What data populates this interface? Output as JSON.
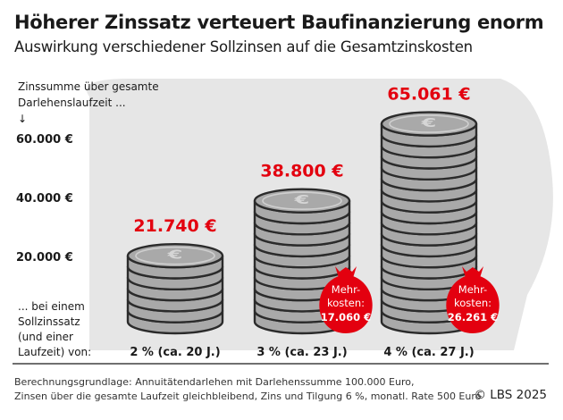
{
  "header": {
    "title": "Höherer Zinssatz verteuert Baufinanzierung enorm",
    "subtitle": "Auswirkung verschiedener Sollzinsen auf die Gesamtzinskosten"
  },
  "chart_data": {
    "type": "bar",
    "ylabel_lines": [
      "Zinssumme über gesamte",
      "Darlehenslaufzeit ...",
      "↓"
    ],
    "xlabel_lines": [
      "... bei einem",
      "Sollzinssatz",
      "(und einer",
      "Laufzeit) von:"
    ],
    "yticks": [
      20000,
      40000,
      60000
    ],
    "ytick_labels": [
      "20.000 €",
      "40.000 €",
      "60.000 €"
    ],
    "ylim": [
      0,
      65061
    ],
    "categories": [
      "2 % (ca. 20 J.)",
      "3 % (ca. 23 J.)",
      "4 % (ca. 27 J.)"
    ],
    "values": [
      21740,
      38800,
      65061
    ],
    "value_labels": [
      "21.740 €",
      "38.800 €",
      "65.061 €"
    ],
    "extra_cost": [
      null,
      {
        "line1": "Mehr-",
        "line2": "kosten:",
        "amount": "17.060 €"
      },
      {
        "line1": "Mehr-",
        "line2": "kosten:",
        "amount": "26.261 €"
      }
    ],
    "grid": false,
    "colors": {
      "value_label": "#e3000f",
      "money_bag": "#e3000f",
      "coin": "#a9a9a9",
      "coin_edge": "#2b2b2b",
      "backdrop": "#e6e6e6"
    }
  },
  "footer": {
    "source_lines": [
      "Berechnungsgrundlage: Annuitätendarlehen mit Darlehenssumme 100.000 Euro,",
      "Zinsen über die gesamte Laufzeit gleichbleibend, Zins und Tilgung 6 %, monatl. Rate 500 Euro"
    ],
    "copyright": "© LBS 2025"
  }
}
